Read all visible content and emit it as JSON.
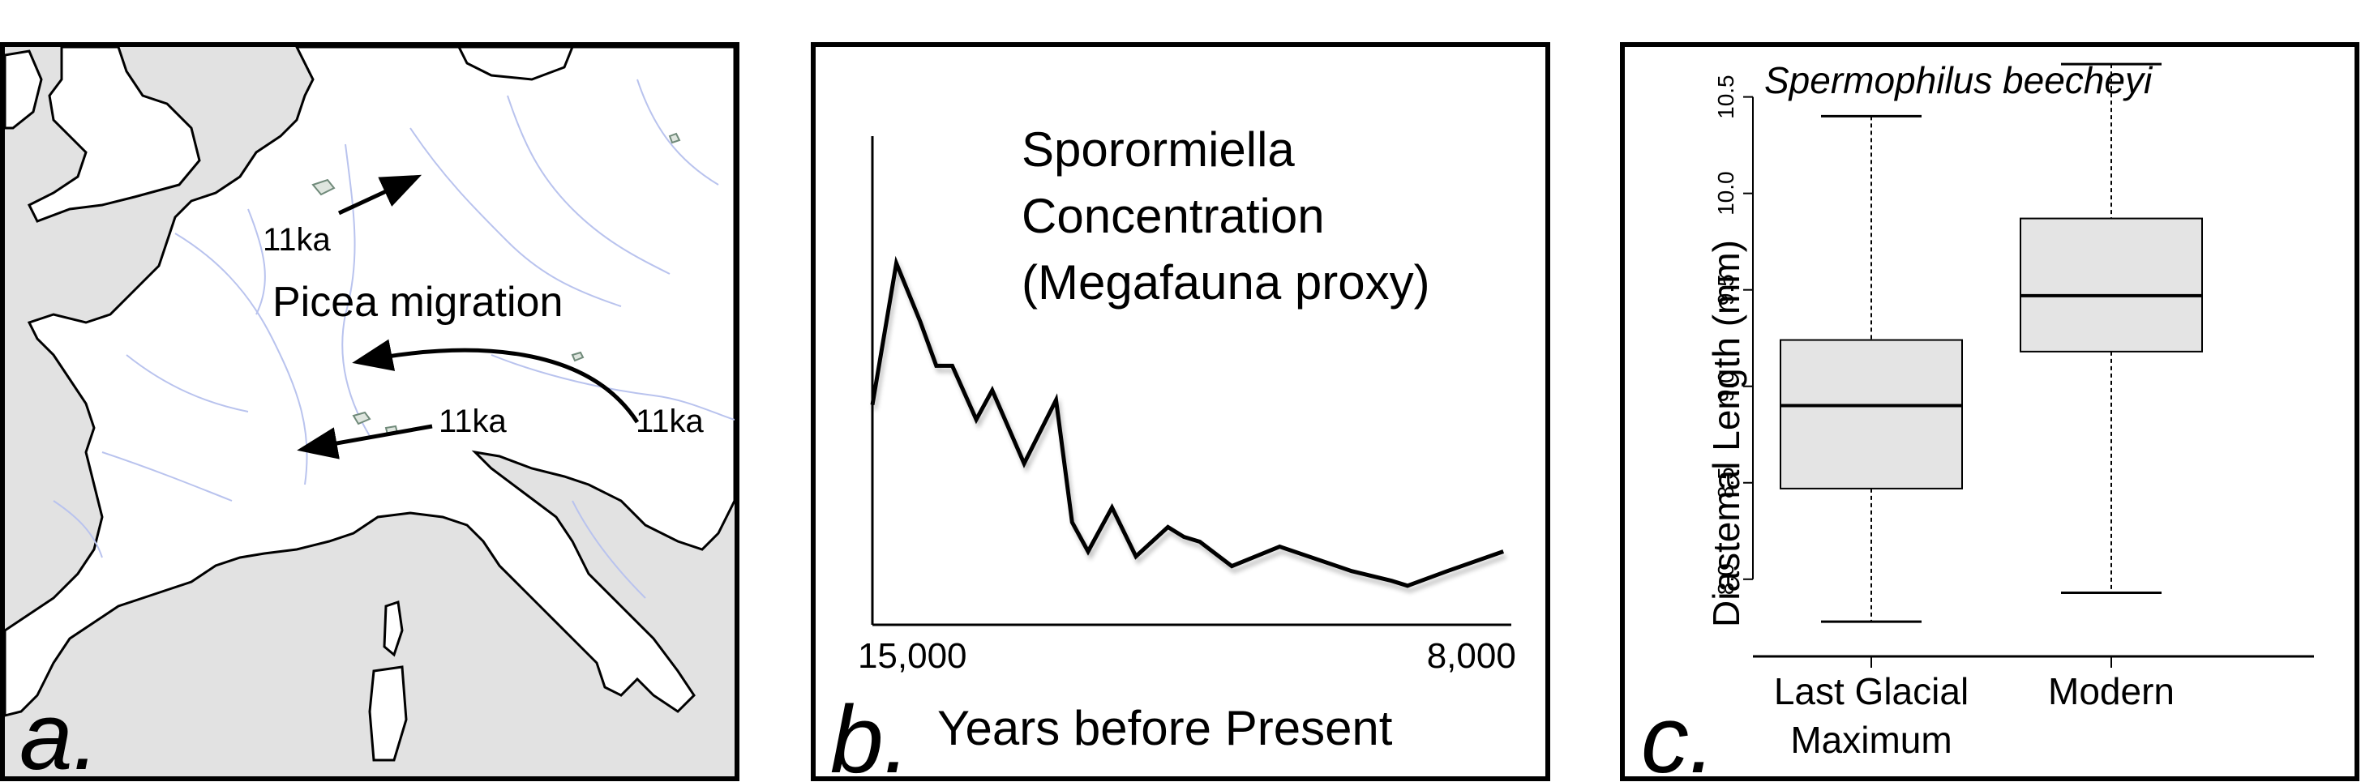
{
  "panels": {
    "a": {
      "letter": "a.",
      "migration_label": "Picea migration",
      "arrow_labels": [
        "11ka",
        "11ka",
        "11ka"
      ],
      "colors": {
        "land": "#ffffff",
        "sea": "#e2e2e2",
        "rivers": "#b9c3ee",
        "lakes": "#708a7a",
        "arrows": "#000000"
      }
    },
    "b": {
      "letter": "b.",
      "title_lines": [
        "Sporormiella",
        "Concentration",
        "(Megafauna proxy)"
      ],
      "xlabel": "Years before Present",
      "x_tick_labels": [
        "15,000",
        "8,000"
      ]
    },
    "c": {
      "letter": "c.",
      "title": "Spermophilus beecheyi",
      "ylabel": "Diastemal Length (mm)",
      "category_lines": [
        [
          "Last Glacial",
          "Maximum"
        ],
        [
          "Modern"
        ]
      ]
    }
  },
  "chart_data": [
    {
      "type": "line",
      "title": "Sporormiella Concentration (Megafauna proxy)",
      "xlabel": "Years before Present",
      "ylabel": "",
      "x_reversed": true,
      "xlim": [
        15500,
        7500
      ],
      "x_ticks": [
        15000,
        8000
      ],
      "y_ticks_shown": false,
      "ylim": [
        0,
        1
      ],
      "series": [
        {
          "x": [
            15500,
            15200,
            14900,
            14700,
            14500,
            14200,
            14000,
            13600,
            13200,
            13000,
            12800,
            12500,
            12200,
            11800,
            11600,
            11400,
            11000,
            10400,
            9500,
            9000,
            8800,
            8300,
            7600
          ],
          "y": [
            0.45,
            0.74,
            0.62,
            0.53,
            0.53,
            0.42,
            0.48,
            0.33,
            0.46,
            0.21,
            0.15,
            0.24,
            0.14,
            0.2,
            0.18,
            0.17,
            0.12,
            0.16,
            0.11,
            0.09,
            0.08,
            0.11,
            0.15
          ]
        }
      ],
      "line_color": "#000000",
      "grid": false
    },
    {
      "type": "box",
      "title": "Spermophilus beecheyi",
      "xlabel": "",
      "ylabel": "Diastemal Length (mm)",
      "categories": [
        "Last Glacial Maximum",
        "Modern"
      ],
      "ylim": [
        7.6,
        10.7
      ],
      "y_ticks": [
        8.0,
        8.5,
        9.0,
        9.5,
        10.0,
        10.5
      ],
      "y_tick_labels": [
        "8.0",
        "8.5",
        "9.0",
        "9.5",
        "10.0",
        "10.5"
      ],
      "boxes": [
        {
          "name": "Last Glacial Maximum",
          "min": 7.78,
          "q1": 8.47,
          "median": 8.9,
          "q3": 9.24,
          "max": 10.4
        },
        {
          "name": "Modern",
          "min": 7.93,
          "q1": 9.18,
          "median": 9.47,
          "q3": 9.87,
          "max": 10.67
        }
      ],
      "box_fill": "#e4e4e4",
      "grid": false
    }
  ]
}
